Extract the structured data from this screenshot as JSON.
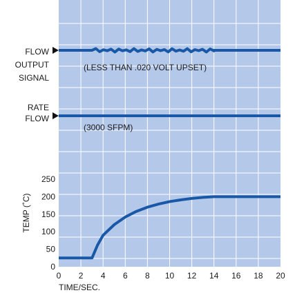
{
  "chart_data": {
    "type": "line",
    "colors": {
      "plot_background": "#b4c8ea",
      "grid": "#ffffff",
      "trace": "#1858a6",
      "marker": "#111111"
    },
    "x_axis": {
      "label": "TIME/SEC.",
      "range": [
        0,
        20
      ],
      "ticks": [
        0,
        2,
        4,
        6,
        8,
        10,
        12,
        14,
        16,
        18,
        20
      ]
    },
    "grid": true,
    "flow_output_signal": {
      "label_lines": [
        "FLOW",
        "OUTPUT",
        "SIGNAL"
      ],
      "annotation": "(LESS THAN .020 VOLT UPSET)",
      "ripple_start_s": 3,
      "ripple_end_s": 14,
      "ripple_peaks": 16
    },
    "rate_flow": {
      "label_lines": [
        "RATE",
        "FLOW"
      ],
      "annotation": "(3000 SFPM)"
    },
    "temperature": {
      "y_label": "TEMP (˚C)",
      "y_range": [
        0,
        250
      ],
      "y_ticks": [
        0,
        50,
        100,
        150,
        200,
        250
      ],
      "x": [
        0,
        3,
        3.5,
        4,
        5,
        6,
        7,
        8,
        9,
        10,
        11,
        12,
        13,
        14,
        15,
        16,
        17,
        18,
        19,
        20
      ],
      "y": [
        25,
        25,
        62,
        90,
        120,
        142,
        158,
        170,
        179,
        186,
        191,
        195,
        198,
        200,
        200,
        200,
        200,
        200,
        200,
        200
      ]
    }
  }
}
